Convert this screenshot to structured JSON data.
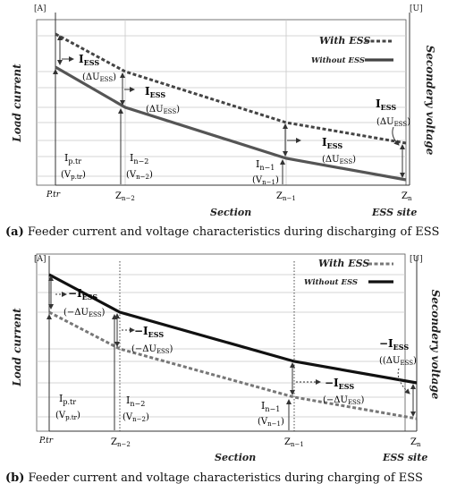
{
  "panel_a": {
    "unit_left": "[A]",
    "unit_right": "[U]",
    "ylabel_left": "Load current",
    "ylabel_right": "Secondery voltage",
    "legend_with": "With ESS",
    "legend_without": "Without ESS",
    "xlabel": "Section",
    "x_ticks": [
      "P.tr",
      "Z",
      "Z",
      "Z"
    ],
    "x_tick_sub": [
      "",
      "n−2",
      "n−1",
      "n"
    ],
    "site_label": "ESS site",
    "i_ptr": "I",
    "i_ptr_sub": "p.tr",
    "v_ptr": "(V",
    "v_ptr_sub": "p.tr",
    "i_n2": "I",
    "i_n2_sub": "n−2",
    "v_n2": "(V",
    "v_n2_sub": "n−2",
    "i_n1": "I",
    "i_n1_sub": "n−1",
    "v_n1": "(V",
    "v_n1_sub": "n−1",
    "iess": "I",
    "iess_sub": "ESS",
    "dU": "(ΔU",
    "dU_sub": "ESS",
    "caption_letter": "(a)",
    "caption": " Feeder current and voltage characteristics during discharging of ESS"
  },
  "panel_b": {
    "unit_left": "[A]",
    "unit_right": "[U]",
    "ylabel_left": "Load current",
    "ylabel_right": "Secondery voltage",
    "legend_with": "With ESS",
    "legend_without": "Without ESS",
    "xlabel": "Section",
    "x_ticks": [
      "P.tr",
      "Z",
      "Z",
      "Z"
    ],
    "x_tick_sub": [
      "",
      "n−2",
      "n−1",
      "n"
    ],
    "site_label": "ESS site",
    "i_ptr": "I",
    "i_ptr_sub": "p.tr",
    "v_ptr": "(V",
    "v_ptr_sub": "p.tr",
    "i_n2": "I",
    "i_n2_sub": "n−2",
    "v_n2": "(V",
    "v_n2_sub": "n−2",
    "i_n1": "I",
    "i_n1_sub": "n−1",
    "v_n1": "(V",
    "v_n1_sub": "n−1",
    "iess": "−I",
    "iess_sub": "ESS",
    "dU": "(−ΔU",
    "dU_sub": "ESS",
    "caption_letter": "(b)",
    "caption": " Feeder current and voltage characteristics during charging of ESS"
  }
}
